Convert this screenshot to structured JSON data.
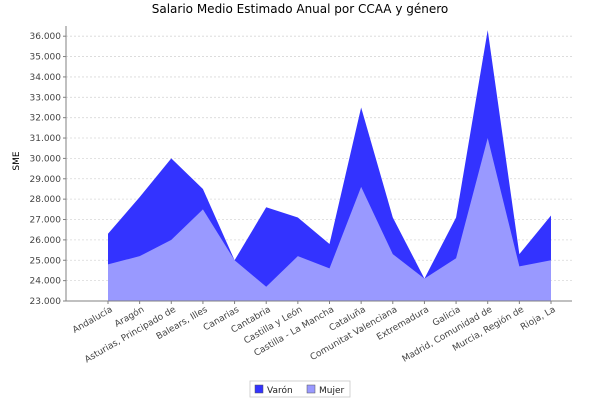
{
  "chart_data": {
    "type": "area",
    "title": "Salario Medio Estimado Anual por CCAA y género",
    "xlabel": "",
    "ylabel": "SME",
    "ylim": [
      23000,
      36500
    ],
    "yticks": [
      23000,
      24000,
      25000,
      26000,
      27000,
      28000,
      29000,
      30000,
      31000,
      32000,
      33000,
      34000,
      35000,
      36000
    ],
    "ytick_labels": [
      "23.000",
      "24.000",
      "25.000",
      "26.000",
      "27.000",
      "28.000",
      "29.000",
      "30.000",
      "31.000",
      "32.000",
      "33.000",
      "34.000",
      "35.000",
      "36.000"
    ],
    "grid": true,
    "legend_position": "bottom-center",
    "categories": [
      "Andalucía",
      "Aragón",
      "Asturias, Principado de",
      "Balears, Illes",
      "Canarias",
      "Cantabria",
      "Castilla y León",
      "Castilla - La Mancha",
      "Cataluña",
      "Comunitat Valenciana",
      "Extremadura",
      "Galicia",
      "Madrid, Comunidad de",
      "Murcia, Región de",
      "Rioja, La"
    ],
    "series": [
      {
        "name": "Varón",
        "color": "#3333ff",
        "values": [
          26300,
          28100,
          30000,
          28500,
          25000,
          27600,
          27100,
          25800,
          32500,
          27100,
          24100,
          27100,
          36300,
          25300,
          27200
        ]
      },
      {
        "name": "Mujer",
        "color": "#9999ff",
        "values": [
          24800,
          25200,
          26000,
          27500,
          25000,
          23700,
          25200,
          24600,
          28600,
          25300,
          24100,
          25100,
          31000,
          24700,
          25000
        ]
      }
    ]
  }
}
